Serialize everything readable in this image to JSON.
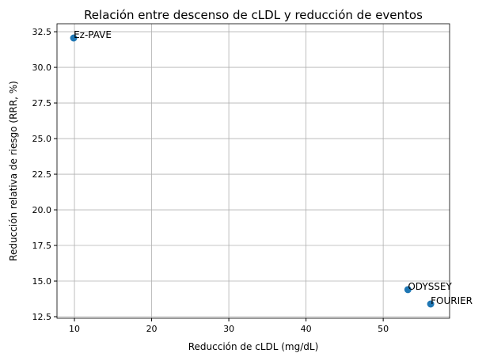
{
  "chart_data": {
    "type": "scatter",
    "title": "Relación entre descenso de cLDL y reducción de eventos",
    "x_label": "Reducción de cLDL (mg/dL)",
    "y_label": "Reducción relativa de riesgo (RRR, %)",
    "x": [
      9.9,
      53.2,
      56.15
    ],
    "values": [
      32.06,
      14.4,
      13.39
    ],
    "labels": [
      "Ez-PAVE",
      "ODYSSEY",
      "FOURIER"
    ],
    "color": "#1f77b4",
    "xlim": [
      7.74,
      58.6
    ],
    "ylim": [
      12.39,
      33.06
    ],
    "xticks": [
      10,
      20,
      30,
      40,
      50
    ],
    "yticks": [
      12.5,
      {
        "value": 15,
        "label": "15.0"
      },
      17.5,
      {
        "value": 20,
        "label": "20.0"
      },
      22.5,
      {
        "value": 25,
        "label": "25.0"
      },
      27.5,
      {
        "value": 30,
        "label": "30.0"
      },
      32.5
    ],
    "grid": true
  }
}
